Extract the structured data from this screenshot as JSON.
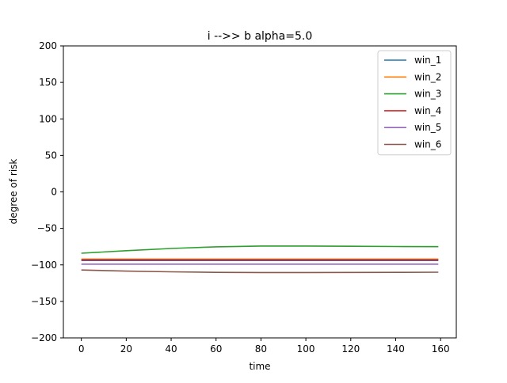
{
  "chart_data": {
    "type": "line",
    "title": "i -->> b  alpha=5.0",
    "xlabel": "time",
    "ylabel": "degree of risk",
    "xlim": [
      -8,
      167
    ],
    "ylim": [
      -200,
      200
    ],
    "xticks": [
      0,
      20,
      40,
      60,
      80,
      100,
      120,
      140,
      160
    ],
    "yticks": [
      -200,
      -150,
      -100,
      -50,
      0,
      50,
      100,
      150,
      200
    ],
    "grid": false,
    "legend_position": "top-right",
    "x": [
      0,
      20,
      40,
      60,
      80,
      100,
      120,
      140,
      159
    ],
    "series": [
      {
        "name": "win_1",
        "color": "#1f77b4",
        "values": [
          -94,
          -94,
          -94,
          -94,
          -94,
          -94,
          -94,
          -94,
          -94
        ]
      },
      {
        "name": "win_2",
        "color": "#ff7f0e",
        "values": [
          -92,
          -92,
          -92,
          -92,
          -92,
          -92,
          -92,
          -92,
          -92
        ]
      },
      {
        "name": "win_3",
        "color": "#2ca02c",
        "values": [
          -84,
          -80.5,
          -77.5,
          -75.2,
          -74.2,
          -74.2,
          -74.5,
          -74.8,
          -75
        ]
      },
      {
        "name": "win_4",
        "color": "#d62728",
        "values": [
          -93,
          -93,
          -93,
          -93,
          -93,
          -93,
          -93,
          -93,
          -93
        ]
      },
      {
        "name": "win_5",
        "color": "#9467bd",
        "values": [
          -99,
          -99,
          -99,
          -99,
          -99,
          -99,
          -99,
          -99,
          -99
        ]
      },
      {
        "name": "win_6",
        "color": "#8c564b",
        "values": [
          -107,
          -108.5,
          -109.5,
          -110.2,
          -110.5,
          -110.5,
          -110.3,
          -110.2,
          -110
        ]
      }
    ]
  }
}
